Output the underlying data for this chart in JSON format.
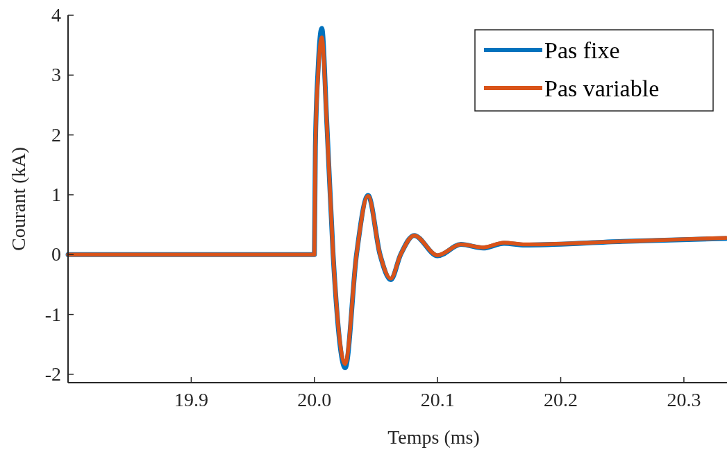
{
  "chart_data": {
    "type": "line",
    "xlabel": "Temps (ms)",
    "ylabel": "Courant (kA)",
    "xlim": [
      19.8,
      20.335
    ],
    "ylim": [
      -2.14,
      4
    ],
    "xticks": [
      {
        "value": 19.9,
        "label": "19.9"
      },
      {
        "value": 20.0,
        "label": "20.0"
      },
      {
        "value": 20.1,
        "label": "20.1"
      },
      {
        "value": 20.2,
        "label": "20.2"
      },
      {
        "value": 20.3,
        "label": "20.3"
      }
    ],
    "yticks": [
      -2,
      -1,
      0,
      1,
      2,
      3,
      4
    ],
    "grid": false,
    "legend": "top right",
    "line_style": "solid",
    "marker": "none",
    "x": [
      19.8,
      19.9,
      20.0,
      20.0008,
      20.003,
      20.006,
      20.0101,
      20.0152,
      20.025,
      20.0342,
      20.0436,
      20.0533,
      20.062,
      20.07,
      20.081,
      20.1,
      20.119,
      20.137,
      20.154,
      20.171,
      20.25,
      20.334
    ],
    "series": [
      {
        "name": "Pas fixe",
        "color": "#0072bd",
        "values": [
          0,
          0,
          0,
          1.8,
          3.1,
          3.78,
          2.2,
          0,
          -1.89,
          0,
          0.99,
          0,
          -0.42,
          0,
          0.32,
          -0.02,
          0.17,
          0.11,
          0.19,
          0.16,
          0.22,
          0.27
        ]
      },
      {
        "name": "Pas variable",
        "color": "#d95319",
        "values": [
          0,
          0,
          0,
          1.8,
          3.0,
          3.63,
          2.18,
          0,
          -1.83,
          0,
          0.98,
          0,
          -0.4,
          0,
          0.32,
          -0.01,
          0.17,
          0.12,
          0.2,
          0.17,
          0.22,
          0.28
        ]
      }
    ]
  }
}
